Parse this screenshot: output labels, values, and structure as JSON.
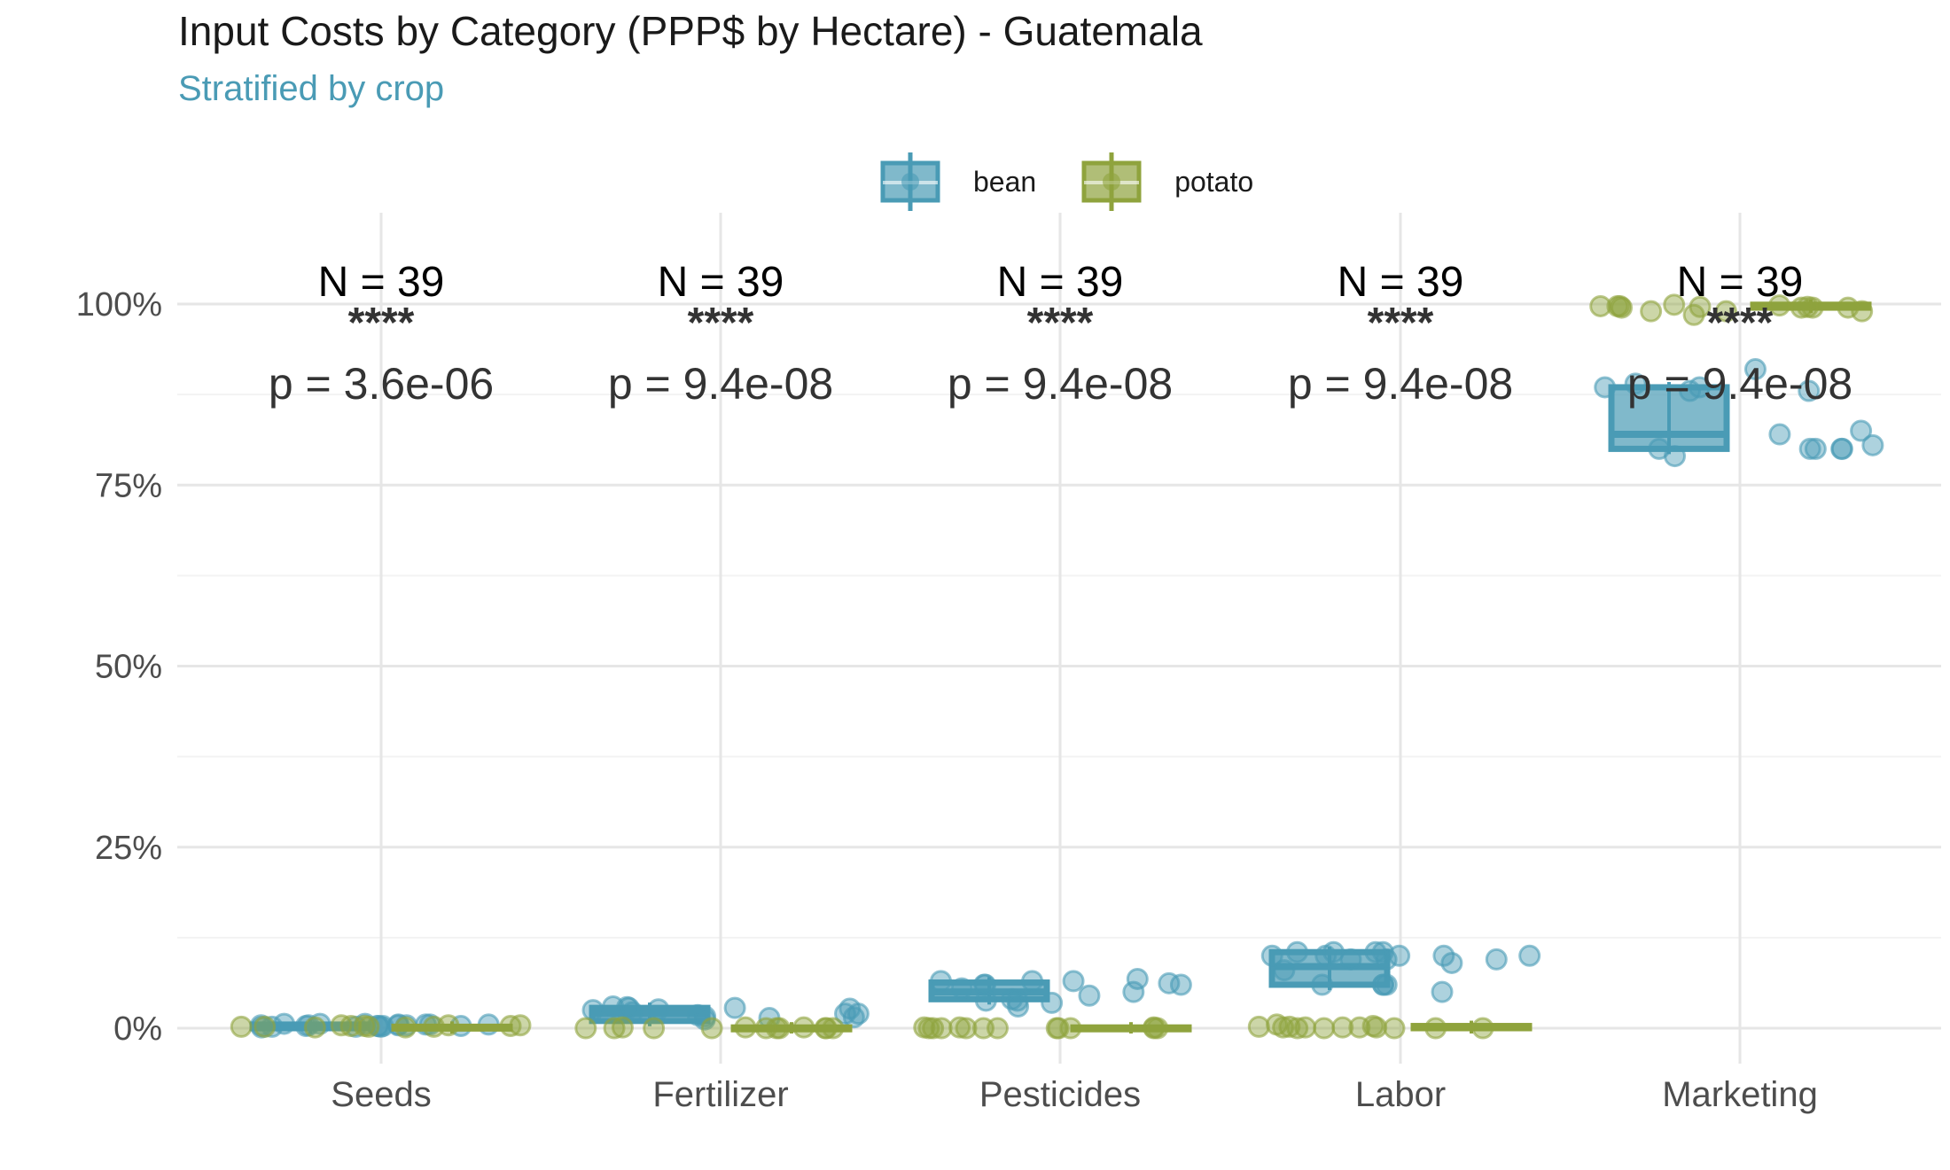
{
  "title": "Input Costs by Category (PPP$ by Hectare) - Guatemala",
  "subtitle": "Stratified by crop",
  "colors": {
    "bean": "#4a9bb5",
    "potato": "#8fa33d",
    "grid_major": "#e6e6e6",
    "grid_minor": "#f3f3f3"
  },
  "legend": [
    {
      "key": "bean",
      "label": "bean"
    },
    {
      "key": "potato",
      "label": "potato"
    }
  ],
  "chart_data": {
    "type": "boxplot",
    "categories": [
      "Seeds",
      "Fertilizer",
      "Pesticides",
      "Labor",
      "Marketing"
    ],
    "ylim": [
      -0.05,
      1.1
    ],
    "y_ticks": [
      0,
      0.25,
      0.5,
      0.75,
      1.0
    ],
    "y_tick_labels": [
      "0%",
      "25%",
      "50%",
      "75%",
      "100%"
    ],
    "grid": true,
    "legend_position": "top",
    "annotations": [
      {
        "category": "Seeds",
        "n_label": "N = 39",
        "signif": "****",
        "p_label": "p = 3.6e-06"
      },
      {
        "category": "Fertilizer",
        "n_label": "N = 39",
        "signif": "****",
        "p_label": "p = 9.4e-08"
      },
      {
        "category": "Pesticides",
        "n_label": "N = 39",
        "signif": "****",
        "p_label": "p = 9.4e-08"
      },
      {
        "category": "Labor",
        "n_label": "N = 39",
        "signif": "****",
        "p_label": "p = 9.4e-08"
      },
      {
        "category": "Marketing",
        "n_label": "N = 39",
        "signif": "****",
        "p_label": "p = 9.4e-08"
      }
    ],
    "series": [
      {
        "name": "bean",
        "boxes": [
          {
            "category": "Seeds",
            "q1": 0.0,
            "median": 0.003,
            "q3": 0.005
          },
          {
            "category": "Fertilizer",
            "q1": 0.01,
            "median": 0.02,
            "q3": 0.028
          },
          {
            "category": "Pesticides",
            "q1": 0.04,
            "median": 0.05,
            "q3": 0.063
          },
          {
            "category": "Labor",
            "q1": 0.06,
            "median": 0.085,
            "q3": 0.105
          },
          {
            "category": "Marketing",
            "q1": 0.8,
            "median": 0.82,
            "q3": 0.885
          }
        ],
        "points": [
          {
            "category": "Seeds",
            "values": [
              0.003,
              0.005,
              0.002,
              0.004,
              0.006,
              0.003,
              0.001,
              0.005,
              0.004,
              0.002,
              0.006,
              0.003,
              0.005,
              0.004,
              0.002,
              0.003,
              0.005,
              0.006,
              0.004,
              0.003
            ]
          },
          {
            "category": "Fertilizer",
            "values": [
              0.028,
              0.025,
              0.02,
              0.015,
              0.03,
              0.012,
              0.027,
              0.022,
              0.018,
              0.028,
              0.014,
              0.026,
              0.029,
              0.02,
              0.016
            ]
          },
          {
            "category": "Pesticides",
            "values": [
              0.06,
              0.065,
              0.04,
              0.055,
              0.068,
              0.03,
              0.038,
              0.065,
              0.06,
              0.038,
              0.062,
              0.035,
              0.06,
              0.045,
              0.065,
              0.05
            ]
          },
          {
            "category": "Labor",
            "values": [
              0.1,
              0.105,
              0.06,
              0.095,
              0.08,
              0.1,
              0.105,
              0.09,
              0.05,
              0.1,
              0.095,
              0.105,
              0.1,
              0.06,
              0.095,
              0.06,
              0.06,
              0.105,
              0.1
            ]
          },
          {
            "category": "Marketing",
            "values": [
              0.88,
              0.89,
              0.79,
              0.8,
              0.8,
              0.805,
              0.825,
              0.8,
              0.8,
              0.82,
              0.91,
              0.885,
              0.88,
              0.885,
              0.8
            ]
          }
        ]
      },
      {
        "name": "potato",
        "boxes": [
          {
            "category": "Seeds",
            "q1": 0.0,
            "median": 0.001,
            "q3": 0.002
          },
          {
            "category": "Fertilizer",
            "q1": 0.0,
            "median": 0.0,
            "q3": 0.001
          },
          {
            "category": "Pesticides",
            "q1": 0.0,
            "median": 0.0,
            "q3": 0.001
          },
          {
            "category": "Labor",
            "q1": 0.0,
            "median": 0.001,
            "q3": 0.003
          },
          {
            "category": "Marketing",
            "q1": 0.995,
            "median": 0.997,
            "q3": 0.999
          }
        ],
        "points": [
          {
            "category": "Seeds",
            "values": [
              0.003,
              0.002,
              0.004,
              0.001,
              0.003,
              0.002,
              0.004,
              0.001,
              0.003,
              0.002,
              0.004,
              0.002
            ]
          },
          {
            "category": "Fertilizer",
            "values": [
              0.0,
              0.001,
              0.0,
              0.0,
              0.001,
              0.0,
              0.0,
              0.0,
              0.001,
              0.0,
              0.0,
              0.0,
              0.0
            ]
          },
          {
            "category": "Pesticides",
            "values": [
              0.0,
              0.001,
              0.0,
              0.0,
              0.0,
              0.001,
              0.0,
              0.0,
              0.0,
              0.001,
              0.0,
              0.0,
              0.0,
              0.0
            ]
          },
          {
            "category": "Labor",
            "values": [
              0.005,
              0.001,
              0.0,
              0.001,
              0.0,
              0.0,
              0.001,
              0.002,
              0.0,
              0.001,
              0.003,
              0.002,
              0.0,
              0.001
            ]
          },
          {
            "category": "Marketing",
            "values": [
              0.997,
              0.995,
              0.99,
              0.996,
              0.985,
              0.99,
              0.995,
              0.998,
              0.999,
              0.996,
              0.997,
              0.995,
              0.995,
              0.997,
              0.99
            ]
          }
        ]
      }
    ]
  }
}
